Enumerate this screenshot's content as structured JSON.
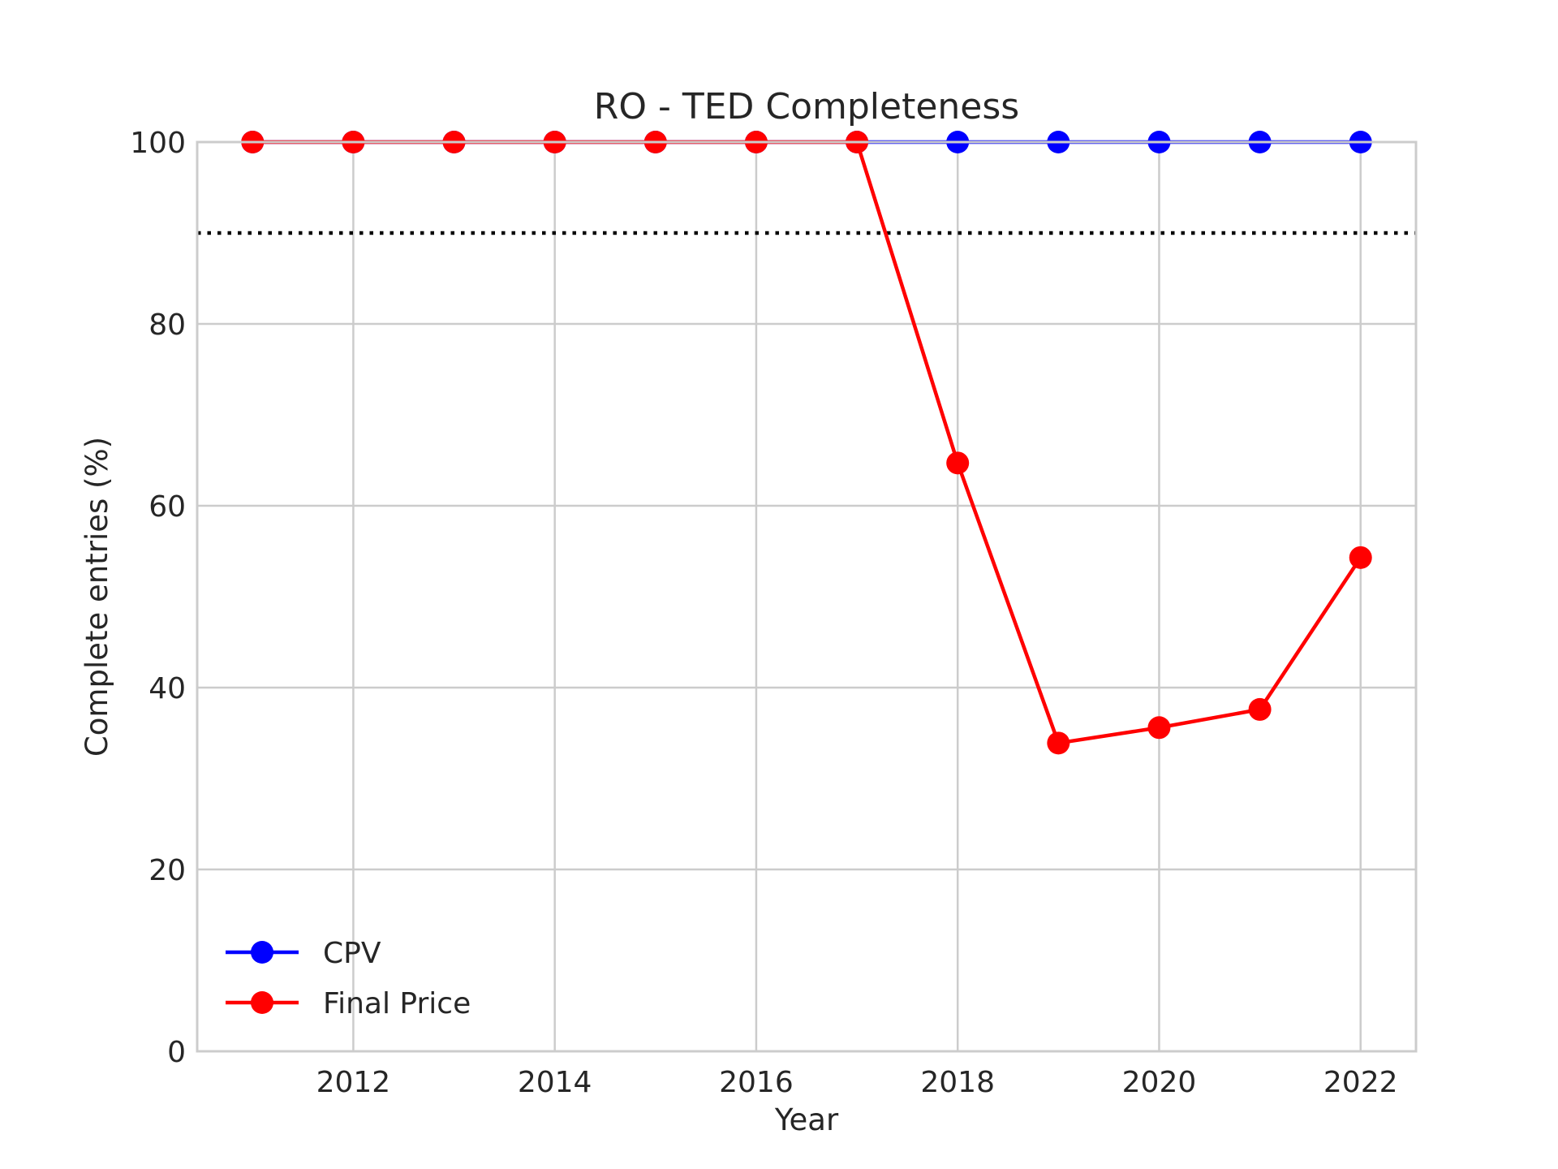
{
  "chart_data": {
    "type": "line",
    "title": "RO - TED Completeness",
    "xlabel": "Year",
    "ylabel": "Complete entries (%)",
    "x": [
      2011,
      2012,
      2013,
      2014,
      2015,
      2016,
      2017,
      2018,
      2019,
      2020,
      2021,
      2022
    ],
    "xlim": [
      2010.45,
      2022.55
    ],
    "ylim": [
      0,
      100
    ],
    "xticks": [
      2012,
      2014,
      2016,
      2018,
      2020,
      2022
    ],
    "xtick_labels": [
      "2012",
      "2014",
      "2016",
      "2018",
      "2020",
      "2022"
    ],
    "yticks": [
      0,
      20,
      40,
      60,
      80,
      100
    ],
    "ytick_labels": [
      "0",
      "20",
      "40",
      "60",
      "80",
      "100"
    ],
    "grid": true,
    "legend_position": "lower-left",
    "series": [
      {
        "name": "CPV",
        "color": "#0000ff",
        "values": [
          100,
          100,
          100,
          100,
          100,
          100,
          100,
          100,
          100,
          100,
          100,
          100
        ]
      },
      {
        "name": "Final Price",
        "color": "#ff0000",
        "values": [
          100,
          100,
          100,
          100,
          100,
          100,
          100,
          64.7,
          33.9,
          35.6,
          37.6,
          54.3
        ]
      }
    ],
    "reference_line": {
      "y": 90,
      "style": "dotted",
      "color": "#000000"
    }
  }
}
